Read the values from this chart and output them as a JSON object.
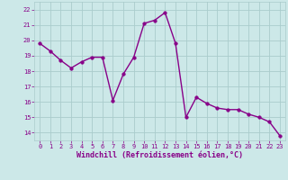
{
  "x": [
    0,
    1,
    2,
    3,
    4,
    5,
    6,
    7,
    8,
    9,
    10,
    11,
    12,
    13,
    14,
    15,
    16,
    17,
    18,
    19,
    20,
    21,
    22,
    23
  ],
  "y": [
    19.8,
    19.3,
    18.7,
    18.2,
    18.6,
    18.9,
    18.9,
    16.1,
    17.8,
    18.9,
    21.1,
    21.3,
    21.8,
    19.8,
    15.0,
    16.3,
    15.9,
    15.6,
    15.5,
    15.5,
    15.2,
    15.0,
    14.7,
    13.8
  ],
  "line_color": "#880088",
  "marker_color": "#880088",
  "bg_color": "#cce8e8",
  "grid_color": "#aacccc",
  "xlabel": "Windchill (Refroidissement éolien,°C)",
  "ylabel_ticks": [
    14,
    15,
    16,
    17,
    18,
    19,
    20,
    21,
    22
  ],
  "xlim": [
    -0.5,
    23.5
  ],
  "ylim": [
    13.5,
    22.5
  ],
  "xtick_labels": [
    "0",
    "1",
    "2",
    "3",
    "4",
    "5",
    "6",
    "7",
    "8",
    "9",
    "10",
    "11",
    "12",
    "13",
    "14",
    "15",
    "16",
    "17",
    "18",
    "19",
    "20",
    "21",
    "22",
    "23"
  ],
  "font_color": "#880088",
  "linewidth": 1.0,
  "markersize": 2.5,
  "tick_fontsize": 5.0,
  "xlabel_fontsize": 6.0
}
